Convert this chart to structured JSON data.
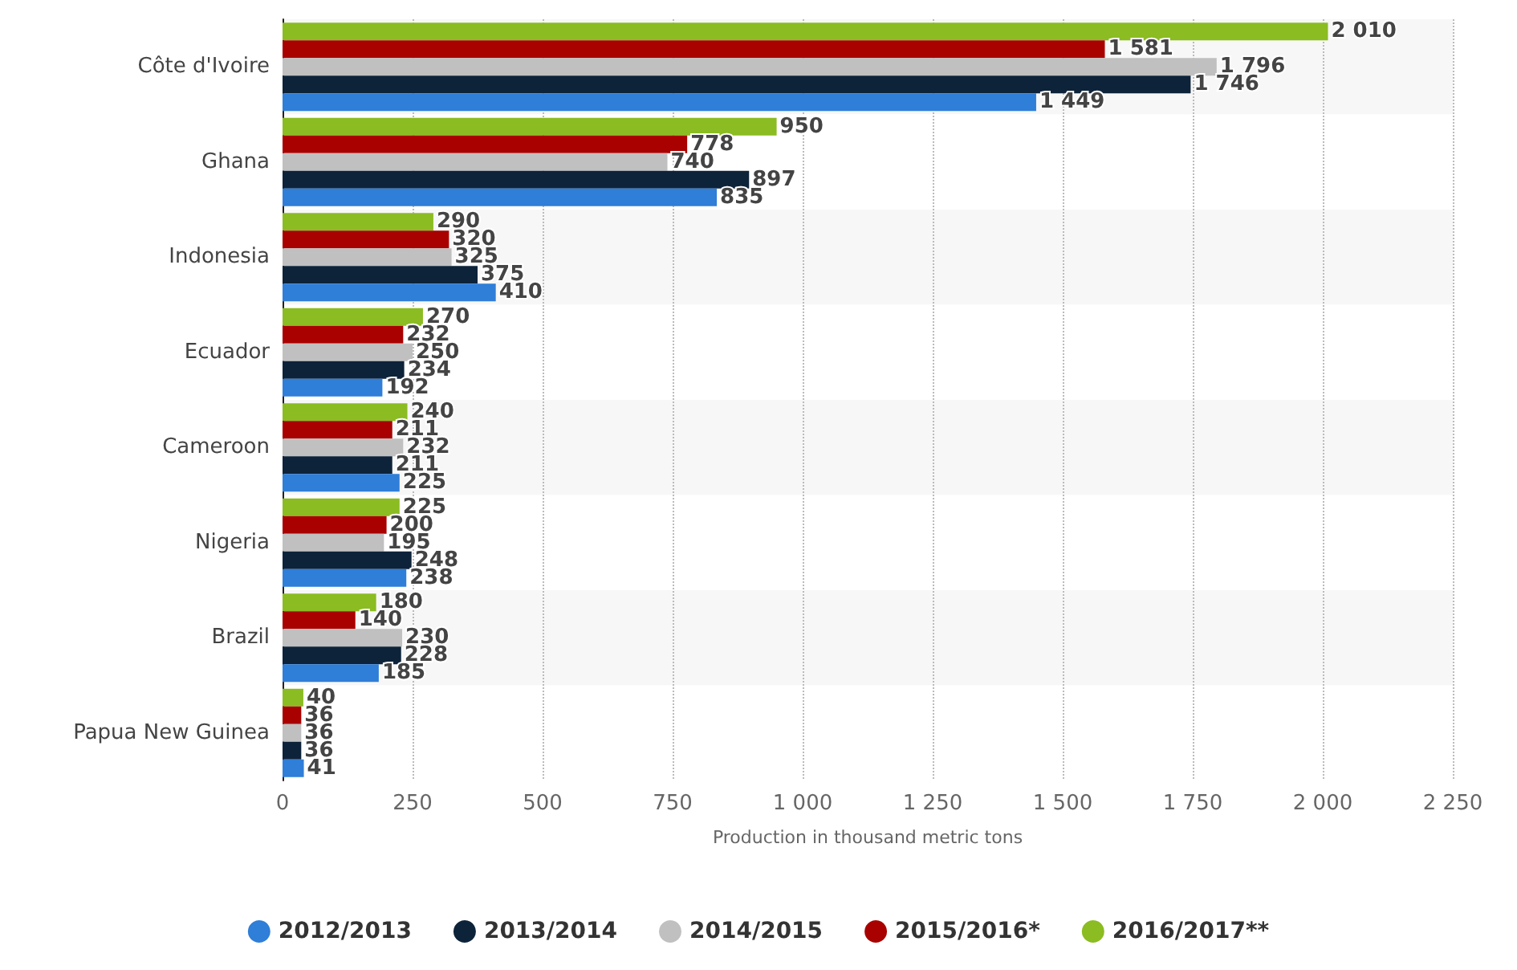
{
  "chart_data": {
    "type": "bar",
    "orientation": "horizontal",
    "xlabel": "Production in thousand metric tons",
    "categories": [
      "Côte d'Ivoire",
      "Ghana",
      "Indonesia",
      "Ecuador",
      "Cameroon",
      "Nigeria",
      "Brazil",
      "Papua New Guinea"
    ],
    "series": [
      {
        "name": "2012/2013",
        "color": "#2f7ed8",
        "values": [
          1449,
          835,
          410,
          192,
          225,
          238,
          185,
          41
        ]
      },
      {
        "name": "2013/2014",
        "color": "#0d233a",
        "values": [
          1746,
          897,
          375,
          234,
          211,
          248,
          228,
          36
        ]
      },
      {
        "name": "2014/2015",
        "color": "#c0c0c0",
        "values": [
          1796,
          740,
          325,
          250,
          232,
          195,
          230,
          36
        ]
      },
      {
        "name": "2015/2016*",
        "color": "#a90000",
        "values": [
          1581,
          778,
          320,
          232,
          211,
          200,
          140,
          36
        ]
      },
      {
        "name": "2016/2017**",
        "color": "#8bbc21",
        "values": [
          2010,
          950,
          290,
          270,
          240,
          225,
          180,
          40
        ]
      }
    ],
    "xlim": [
      0,
      2250
    ],
    "xticks": [
      0,
      250,
      500,
      750,
      {
        "value": 1000,
        "label": "1 000"
      },
      {
        "value": 1250,
        "label": "1 250"
      },
      {
        "value": 1500,
        "label": "1 500"
      },
      {
        "value": 1750,
        "label": "1 750"
      },
      {
        "value": 2000,
        "label": "2 000"
      },
      {
        "value": 2250,
        "label": "2 250"
      }
    ],
    "grid": "x",
    "legend": "bottom",
    "data_labels": true
  }
}
